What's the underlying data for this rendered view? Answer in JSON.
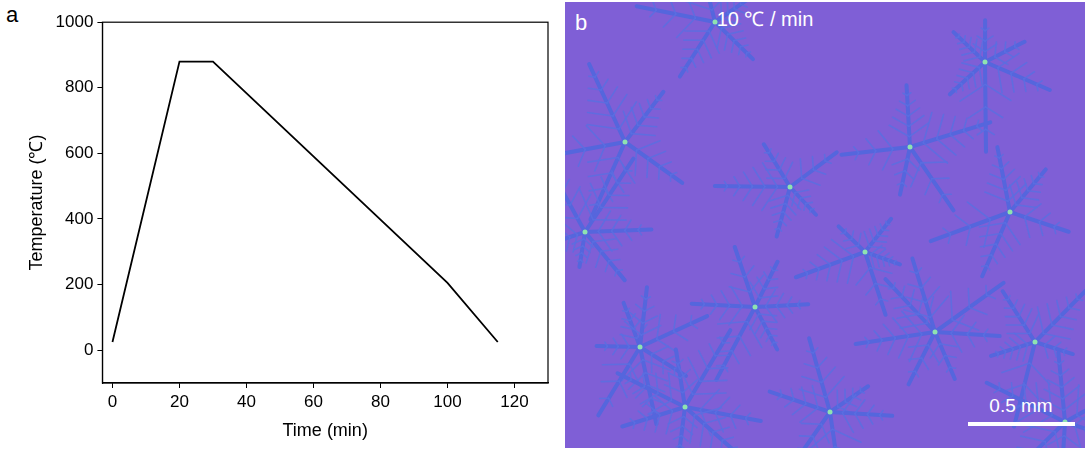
{
  "chart_data": {
    "type": "line",
    "panel": "a",
    "x_label": "Time (min)",
    "y_label": "Temperature (℃)",
    "x": [
      0,
      20,
      30,
      100,
      115
    ],
    "values": [
      25,
      880,
      880,
      205,
      25
    ],
    "color": "#000000",
    "xlim": [
      -3,
      130
    ],
    "ylim": [
      -100,
      1000
    ],
    "xticks": [
      0,
      20,
      40,
      60,
      80,
      100,
      120
    ],
    "yticks": [
      0,
      200,
      400,
      600,
      800,
      1000
    ],
    "grid": false
  },
  "image": {
    "panel": "b",
    "label": "10 ℃ / min",
    "scale_bar": "0.5 mm"
  }
}
